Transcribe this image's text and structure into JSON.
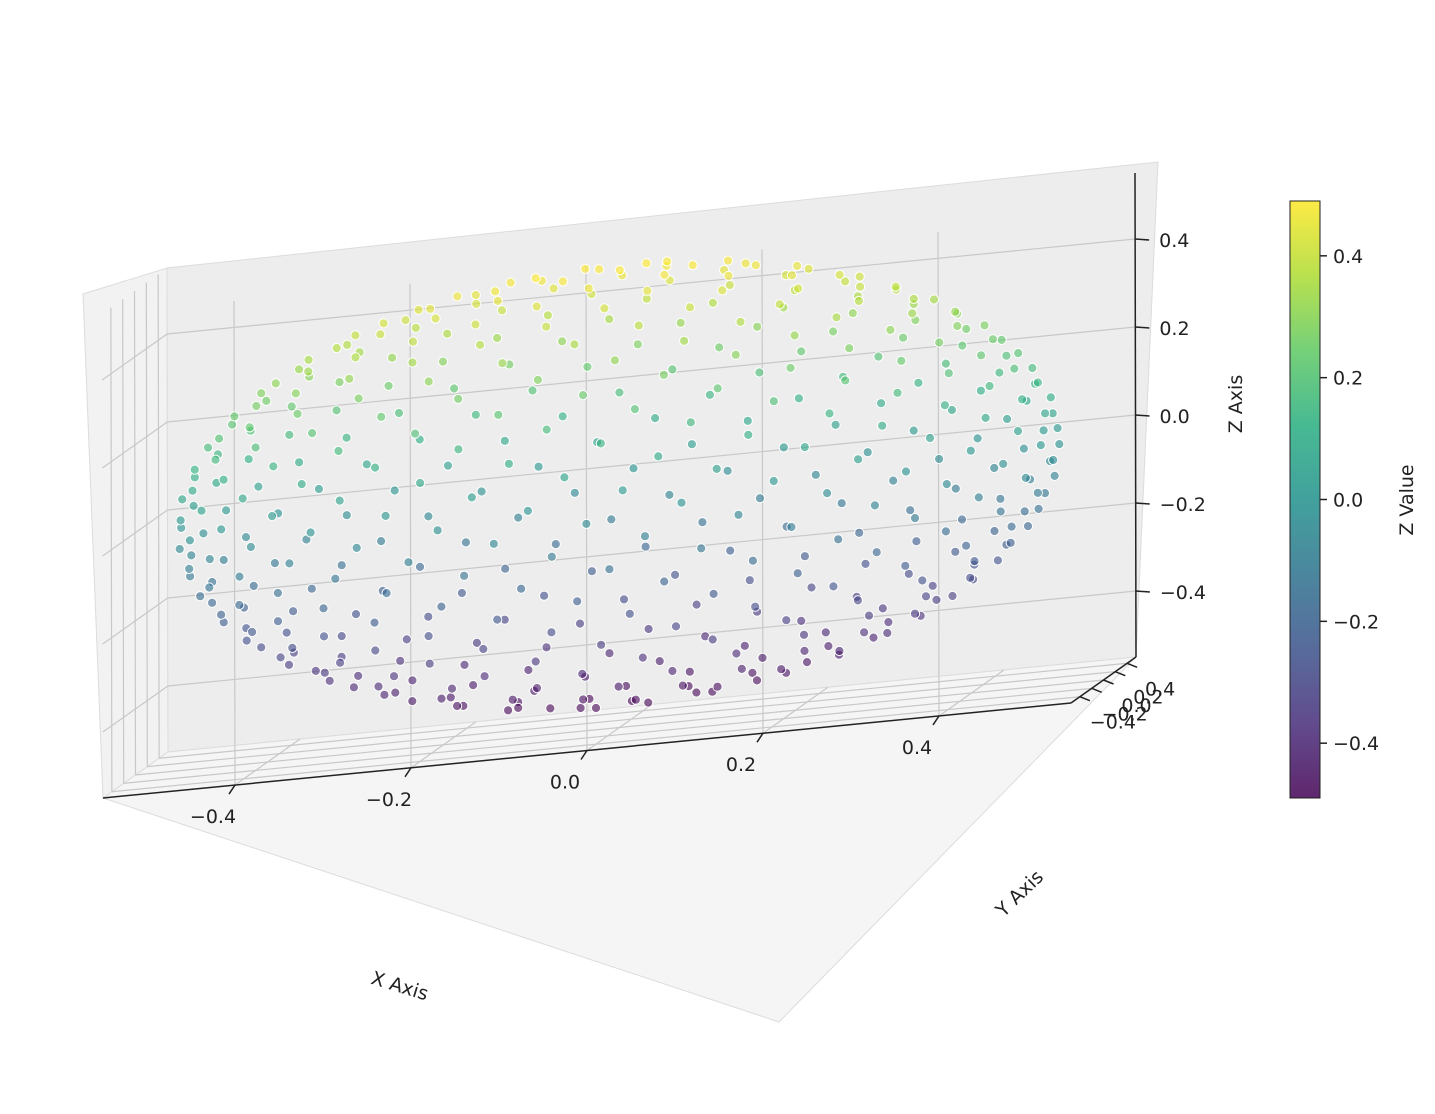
{
  "chart_data": {
    "type": "scatter",
    "projection": "3d",
    "description_shape": "sphere surface",
    "sphere": {
      "center": [
        0,
        0,
        0
      ],
      "radius": 0.5
    },
    "xlabel": "X Axis",
    "ylabel": "Y Axis",
    "zlabel": "Z Axis",
    "xlim": [
      -0.55,
      0.55
    ],
    "ylim": [
      -0.55,
      0.55
    ],
    "zlim": [
      -0.55,
      0.55
    ],
    "x_ticks": [
      "−0.4",
      "−0.2",
      "0.0",
      "0.2",
      "0.4"
    ],
    "y_ticks": [
      "−0.4",
      "−0.2",
      "0.0",
      "0.2",
      "0.4"
    ],
    "z_ticks": [
      "−0.4",
      "−0.2",
      "0.0",
      "0.2",
      "0.4"
    ],
    "x_tick_values": [
      -0.4,
      -0.2,
      0.0,
      0.2,
      0.4
    ],
    "y_tick_values": [
      -0.4,
      -0.2,
      0.0,
      0.2,
      0.4
    ],
    "z_tick_values": [
      -0.4,
      -0.2,
      0.0,
      0.2,
      0.4
    ],
    "grid": true,
    "colormap": "viridis",
    "marker_edge_color": "#ffffff",
    "point_alpha": 0.6,
    "point_count": 500,
    "colorbar": {
      "label": "Z Value",
      "range": [
        -0.49,
        0.49
      ],
      "ticks": [
        "−0.4",
        "−0.2",
        "0.0",
        "0.2",
        "0.4"
      ],
      "tick_values": [
        -0.4,
        -0.2,
        0.0,
        0.2,
        0.4
      ],
      "placement": "right"
    }
  }
}
